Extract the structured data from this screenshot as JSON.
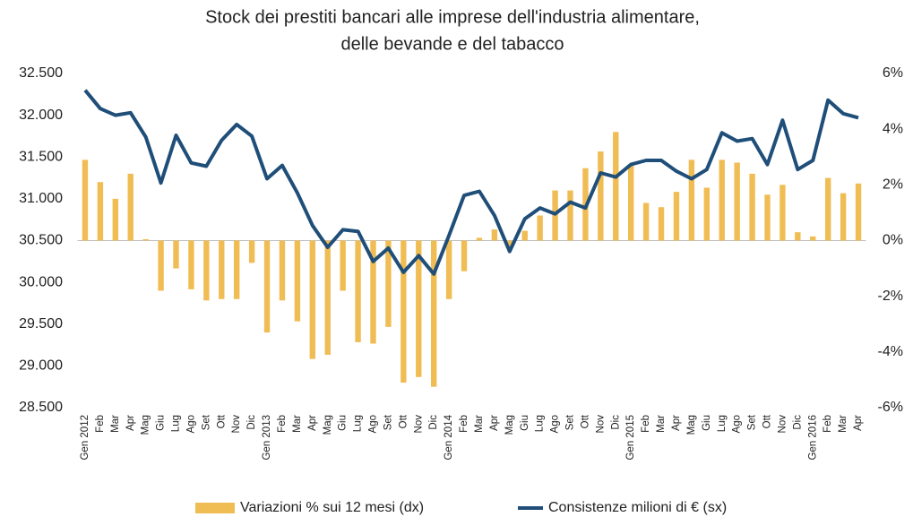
{
  "chart_data": {
    "type": "bar-line",
    "title": [
      "Stock dei prestiti bancari alle imprese dell'industria alimentare,",
      "delle bevande e del tabacco"
    ],
    "categories": [
      "Gen 2012",
      "Feb",
      "Mar",
      "Apr",
      "Mag",
      "Giu",
      "Lug",
      "Ago",
      "Set",
      "Ott",
      "Nov",
      "Dic",
      "Gen 2013",
      "Feb",
      "Mar",
      "Apr",
      "Mag",
      "Giu",
      "Lug",
      "Ago",
      "Set",
      "Ott",
      "Nov",
      "Dic",
      "Gen 2014",
      "Feb",
      "Mar",
      "Apr",
      "Mag",
      "Giu",
      "Lug",
      "Ago",
      "Set",
      "Ott",
      "Nov",
      "Dic",
      "Gen 2015",
      "Feb",
      "Mar",
      "Apr",
      "Mag",
      "Giu",
      "Lug",
      "Ago",
      "Set",
      "Ott",
      "Nov",
      "Dic",
      "Gen 2016",
      "Feb",
      "Mar",
      "Apr"
    ],
    "series": [
      {
        "name": "Variazioni % sui 12 mesi (dx)",
        "type": "bar",
        "axis": "y2",
        "color": "#f0bd55",
        "values": [
          2.9,
          2.1,
          1.5,
          2.4,
          0.05,
          -1.8,
          -1.0,
          -1.75,
          -2.15,
          -2.1,
          -2.1,
          -0.8,
          -3.3,
          -2.15,
          -2.9,
          -4.25,
          -4.1,
          -1.8,
          -3.65,
          -3.7,
          -3.1,
          -5.1,
          -4.9,
          -5.25,
          -2.1,
          -1.1,
          0.1,
          0.4,
          -0.3,
          0.35,
          0.9,
          1.8,
          1.8,
          2.6,
          3.2,
          3.9,
          2.7,
          1.35,
          1.2,
          1.75,
          2.9,
          1.9,
          2.9,
          2.8,
          2.4,
          1.65,
          2.0,
          0.3,
          0.15,
          2.25,
          1.7,
          2.05
        ]
      },
      {
        "name": "Consistenze milioni di € (sx)",
        "type": "line",
        "axis": "y",
        "color": "#1f4e79",
        "values": [
          32300,
          32080,
          32000,
          32030,
          31740,
          31190,
          31760,
          31430,
          31390,
          31700,
          31890,
          31750,
          31240,
          31400,
          31070,
          30680,
          30420,
          30630,
          30610,
          30250,
          30410,
          30120,
          30320,
          30100,
          30560,
          31040,
          31090,
          30800,
          30370,
          30760,
          30890,
          30820,
          30960,
          30890,
          31310,
          31260,
          31410,
          31460,
          31460,
          31330,
          31240,
          31350,
          31790,
          31690,
          31720,
          31410,
          31940,
          31350,
          31460,
          32180,
          32020,
          31970
        ]
      }
    ],
    "ylim": [
      28500,
      32500
    ],
    "yticks": [
      {
        "value": 28500,
        "label": "28.500"
      },
      {
        "value": 29000,
        "label": "29.000"
      },
      {
        "value": 29500,
        "label": "29.500"
      },
      {
        "value": 30000,
        "label": "30.000"
      },
      {
        "value": 30500,
        "label": "30.500"
      },
      {
        "value": 31000,
        "label": "31.000"
      },
      {
        "value": 31500,
        "label": "31.500"
      },
      {
        "value": 32000,
        "label": "32.000"
      },
      {
        "value": 32500,
        "label": "32.500"
      }
    ],
    "y2lim": [
      -6,
      6
    ],
    "y2ticks": [
      {
        "value": -6,
        "label": "-6%"
      },
      {
        "value": -4,
        "label": "-4%"
      },
      {
        "value": -2,
        "label": "-2%"
      },
      {
        "value": 0,
        "label": "0%"
      },
      {
        "value": 2,
        "label": "2%"
      },
      {
        "value": 4,
        "label": "4%"
      },
      {
        "value": 6,
        "label": "6%"
      }
    ],
    "grid": false,
    "legend": "bottom"
  }
}
